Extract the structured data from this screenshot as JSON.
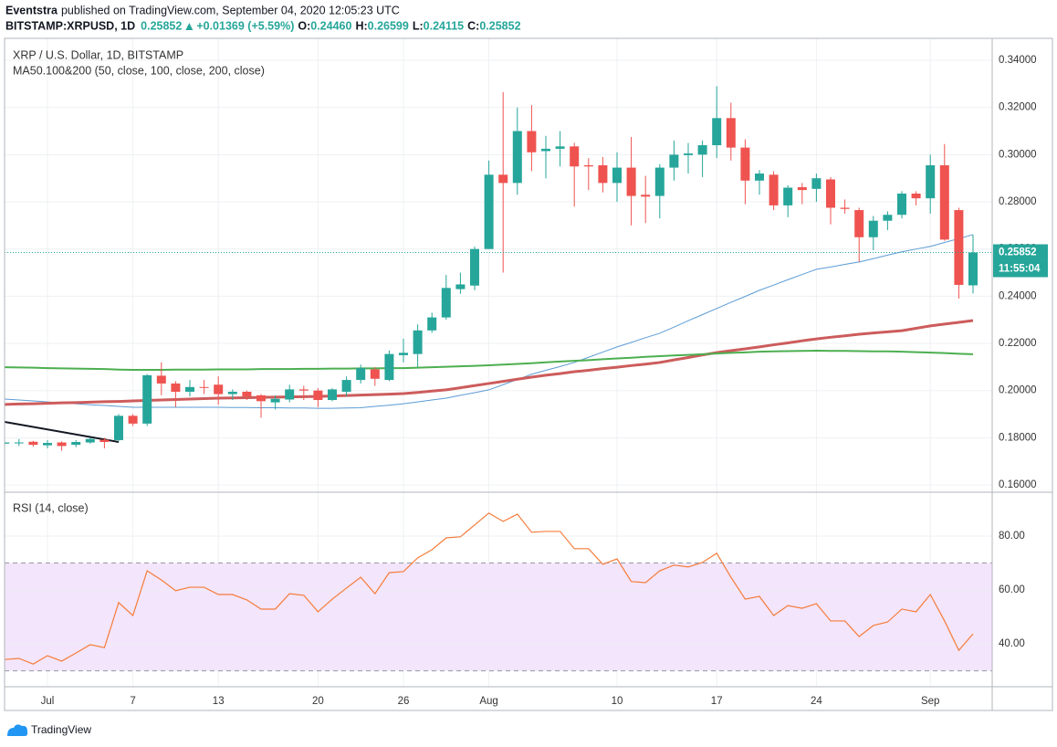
{
  "header": {
    "author": "Eventstra",
    "published": "published on TradingView.com, September 04, 2020 12:05:23 UTC",
    "symbol": "BITSTAMP:XRPUSD, 1D",
    "price": "0.25852",
    "change": "+0.01369 (+5.59%)",
    "ohlc": [
      {
        "label": "O:",
        "value": "0.24460"
      },
      {
        "label": "H:",
        "value": "0.26599"
      },
      {
        "label": "L:",
        "value": "0.24115"
      },
      {
        "label": "C:",
        "value": "0.25852"
      }
    ]
  },
  "chart_data": [
    {
      "type": "candlestick",
      "title": "XRP / U.S. Dollar, 1D, BITSTAMP",
      "subtitle": "MA50.100&200 (50, close, 100, close, 200, close)",
      "categories": [
        null,
        null,
        null,
        "Jul",
        null,
        null,
        null,
        null,
        null,
        "7",
        null,
        null,
        null,
        null,
        null,
        "13",
        null,
        null,
        null,
        null,
        null,
        null,
        "20",
        null,
        null,
        null,
        null,
        null,
        "26",
        null,
        null,
        null,
        null,
        null,
        "Aug",
        null,
        null,
        null,
        null,
        null,
        null,
        null,
        null,
        "10",
        null,
        null,
        null,
        null,
        null,
        null,
        "17",
        null,
        null,
        null,
        null,
        null,
        null,
        "24",
        null,
        null,
        null,
        null,
        null,
        null,
        null,
        "Sep",
        null,
        null,
        null
      ],
      "open": [
        0.1775,
        0.1778,
        0.1783,
        0.1768,
        0.178,
        0.177,
        0.178,
        0.1792,
        0.179,
        0.1893,
        0.186,
        0.2063,
        0.203,
        0.1995,
        0.2015,
        0.2025,
        0.1985,
        0.1995,
        0.198,
        0.195,
        0.1962,
        0.2005,
        0.2,
        0.196,
        0.1995,
        0.2045,
        0.209,
        0.2045,
        0.215,
        0.2155,
        0.2255,
        0.231,
        0.243,
        0.2445,
        0.26,
        0.2915,
        0.288,
        0.31,
        0.3015,
        0.3025,
        0.3035,
        0.2955,
        0.2955,
        0.288,
        0.2945,
        0.283,
        0.2825,
        0.2945,
        0.2998,
        0.3,
        0.304,
        0.3155,
        0.303,
        0.289,
        0.2915,
        0.2785,
        0.2862,
        0.2855,
        0.2895,
        0.2775,
        0.2765,
        0.265,
        0.272,
        0.2745,
        0.2835,
        0.2815,
        0.2955,
        0.2765,
        0.2446
      ],
      "high": [
        0.1785,
        0.1795,
        0.1787,
        0.179,
        0.1785,
        0.179,
        0.18,
        0.18,
        0.19,
        0.19,
        0.207,
        0.212,
        0.204,
        0.2045,
        0.2045,
        0.206,
        0.2005,
        0.2,
        0.1985,
        0.198,
        0.2025,
        0.202,
        0.201,
        0.201,
        0.206,
        0.211,
        0.21,
        0.217,
        0.222,
        0.228,
        0.233,
        0.249,
        0.25,
        0.261,
        0.2975,
        0.3265,
        0.32,
        0.321,
        0.308,
        0.31,
        0.305,
        0.2985,
        0.299,
        0.301,
        0.3075,
        0.291,
        0.296,
        0.306,
        0.305,
        0.306,
        0.329,
        0.322,
        0.3065,
        0.2935,
        0.293,
        0.287,
        0.288,
        0.292,
        0.2905,
        0.281,
        0.2775,
        0.274,
        0.276,
        0.2845,
        0.2845,
        0.3,
        0.3045,
        0.2775,
        0.26599
      ],
      "low": [
        0.177,
        0.1765,
        0.1762,
        0.1755,
        0.1745,
        0.176,
        0.1775,
        0.1755,
        0.1785,
        0.185,
        0.185,
        0.198,
        0.193,
        0.1975,
        0.1985,
        0.194,
        0.196,
        0.196,
        0.1885,
        0.192,
        0.195,
        0.196,
        0.193,
        0.1955,
        0.1975,
        0.203,
        0.202,
        0.204,
        0.212,
        0.21,
        0.2245,
        0.23,
        0.241,
        0.2425,
        0.26,
        0.25,
        0.283,
        0.293,
        0.29,
        0.295,
        0.278,
        0.285,
        0.284,
        0.28,
        0.27,
        0.271,
        0.273,
        0.289,
        0.292,
        0.2905,
        0.2985,
        0.2975,
        0.279,
        0.283,
        0.2765,
        0.2735,
        0.279,
        0.28,
        0.2705,
        0.275,
        0.2545,
        0.2595,
        0.268,
        0.273,
        0.2785,
        0.275,
        0.2635,
        0.239,
        0.24115
      ],
      "close": [
        0.178,
        0.178,
        0.177,
        0.1778,
        0.1765,
        0.1782,
        0.1795,
        0.1782,
        0.1893,
        0.186,
        0.2065,
        0.203,
        0.1995,
        0.2015,
        0.2012,
        0.1985,
        0.1995,
        0.1975,
        0.1955,
        0.1965,
        0.2005,
        0.2,
        0.196,
        0.2005,
        0.2045,
        0.2095,
        0.205,
        0.2155,
        0.216,
        0.2255,
        0.231,
        0.2435,
        0.245,
        0.26,
        0.2915,
        0.288,
        0.31,
        0.301,
        0.3025,
        0.3035,
        0.295,
        0.295,
        0.288,
        0.2945,
        0.2825,
        0.2822,
        0.2945,
        0.3,
        0.3005,
        0.304,
        0.3155,
        0.303,
        0.289,
        0.292,
        0.2785,
        0.286,
        0.285,
        0.29,
        0.2775,
        0.277,
        0.265,
        0.272,
        0.2745,
        0.2835,
        0.2815,
        0.2955,
        0.264,
        0.2448,
        0.25852
      ],
      "up_color": "#26a69a",
      "down_color": "#ef5350",
      "lines": [
        {
          "color": "#5b9bd5",
          "values": [
            0.1964,
            0.196,
            0.1956,
            0.1952,
            0.1948,
            0.1944,
            0.194,
            0.1937,
            0.1933,
            0.1929,
            0.1929,
            0.1929,
            0.1929,
            0.1929,
            0.1929,
            0.1929,
            0.1928,
            0.1928,
            0.1927,
            0.1927,
            0.1926,
            0.1926,
            0.1925,
            0.1925,
            0.1926,
            0.1927,
            0.1933,
            0.1938,
            0.1944,
            0.1952,
            0.196,
            0.1968,
            0.198,
            0.1991,
            0.2003,
            0.2025,
            0.2047,
            0.2069,
            0.2086,
            0.2102,
            0.2119,
            0.2141,
            0.2163,
            0.2185,
            0.2204,
            0.2224,
            0.2243,
            0.2269,
            0.2296,
            0.2322,
            0.2348,
            0.2374,
            0.2399,
            0.2425,
            0.2447,
            0.247,
            0.2492,
            0.2514,
            0.2524,
            0.2535,
            0.2545,
            0.2559,
            0.2574,
            0.2588,
            0.26,
            0.2611,
            0.2628,
            0.2644,
            0.2661
          ]
        },
        {
          "color": "#cd5c5c",
          "values": [
            0.1941,
            0.1943,
            0.1944,
            0.1946,
            0.1948,
            0.1949,
            0.1951,
            0.1953,
            0.1954,
            0.1956,
            0.1958,
            0.196,
            0.1962,
            0.1964,
            0.1966,
            0.1968,
            0.1969,
            0.197,
            0.1971,
            0.1972,
            0.1973,
            0.1974,
            0.1975,
            0.1977,
            0.1979,
            0.1981,
            0.1983,
            0.1985,
            0.1987,
            0.1992,
            0.1998,
            0.2003,
            0.2012,
            0.2021,
            0.203,
            0.2039,
            0.2048,
            0.2057,
            0.2065,
            0.2072,
            0.208,
            0.2086,
            0.2093,
            0.2099,
            0.2106,
            0.2112,
            0.2119,
            0.213,
            0.214,
            0.2151,
            0.2161,
            0.2169,
            0.2177,
            0.2185,
            0.2194,
            0.2202,
            0.2211,
            0.2219,
            0.2226,
            0.2232,
            0.2239,
            0.2244,
            0.2249,
            0.2254,
            0.2264,
            0.2274,
            0.2282,
            0.2289,
            0.2297
          ]
        },
        {
          "color": "#4caf50",
          "values": [
            0.2099,
            0.2098,
            0.2097,
            0.2095,
            0.2094,
            0.2093,
            0.2092,
            0.2091,
            0.2089,
            0.2088,
            0.2088,
            0.2088,
            0.2089,
            0.2089,
            0.2089,
            0.209,
            0.209,
            0.209,
            0.2091,
            0.2091,
            0.2091,
            0.2092,
            0.2092,
            0.2093,
            0.2093,
            0.2094,
            0.2094,
            0.2095,
            0.2095,
            0.2097,
            0.2099,
            0.2101,
            0.2103,
            0.2105,
            0.2107,
            0.211,
            0.2113,
            0.2116,
            0.212,
            0.2123,
            0.2126,
            0.2129,
            0.2133,
            0.2136,
            0.2139,
            0.2143,
            0.2146,
            0.2149,
            0.2151,
            0.2154,
            0.2157,
            0.216,
            0.2162,
            0.2165,
            0.2166,
            0.2167,
            0.2168,
            0.2169,
            0.2168,
            0.2168,
            0.2167,
            0.2166,
            0.2166,
            0.2165,
            0.2163,
            0.2161,
            0.2159,
            0.2156,
            0.2154
          ]
        }
      ],
      "ylim": [
        0.1573,
        0.3493
      ],
      "yticks": [
        {
          "value": 0.16,
          "label": "0.16000"
        },
        {
          "value": 0.18,
          "label": "0.18000"
        },
        {
          "value": 0.2,
          "label": "0.20000"
        },
        {
          "value": 0.22,
          "label": "0.22000"
        },
        {
          "value": 0.24,
          "label": "0.24000"
        },
        {
          "value": 0.26,
          "label": "0.26000"
        },
        {
          "value": 0.28,
          "label": "0.28000"
        },
        {
          "value": 0.3,
          "label": "0.30000"
        },
        {
          "value": 0.32,
          "label": "0.32000"
        },
        {
          "value": 0.34,
          "label": "0.34000"
        }
      ],
      "countdown": "11:55:04",
      "grid": true
    },
    {
      "type": "line",
      "title": "RSI (14, close)",
      "color": "#f57c3a",
      "values": [
        34.2,
        34.6,
        32.5,
        35.6,
        33.6,
        36.6,
        39.7,
        38.6,
        55.3,
        50.5,
        67.1,
        63.7,
        59.7,
        61.0,
        61.0,
        58.3,
        58.3,
        56.3,
        52.9,
        52.9,
        58.6,
        58.0,
        51.9,
        56.6,
        60.7,
        64.7,
        58.6,
        66.4,
        66.8,
        71.9,
        74.9,
        79.3,
        79.7,
        84.1,
        88.5,
        85.4,
        88.1,
        81.4,
        81.7,
        81.7,
        75.3,
        75.3,
        69.5,
        71.5,
        63.1,
        62.7,
        67.1,
        69.2,
        68.5,
        70.2,
        73.6,
        64.7,
        56.6,
        57.6,
        50.5,
        54.2,
        53.2,
        54.9,
        48.5,
        48.5,
        42.7,
        46.8,
        48.1,
        52.9,
        51.9,
        58.3,
        48.5,
        37.6,
        43.7
      ],
      "ylim": [
        24.1,
        95.9
      ],
      "yticks": [
        {
          "value": 40,
          "label": "40.00"
        },
        {
          "value": 60,
          "label": "60.00"
        },
        {
          "value": 80,
          "label": "80.00"
        }
      ],
      "band": [
        30,
        70
      ],
      "band_color": "#f3e5fb",
      "grid": true
    }
  ],
  "footer": {
    "brand": "TradingView"
  }
}
